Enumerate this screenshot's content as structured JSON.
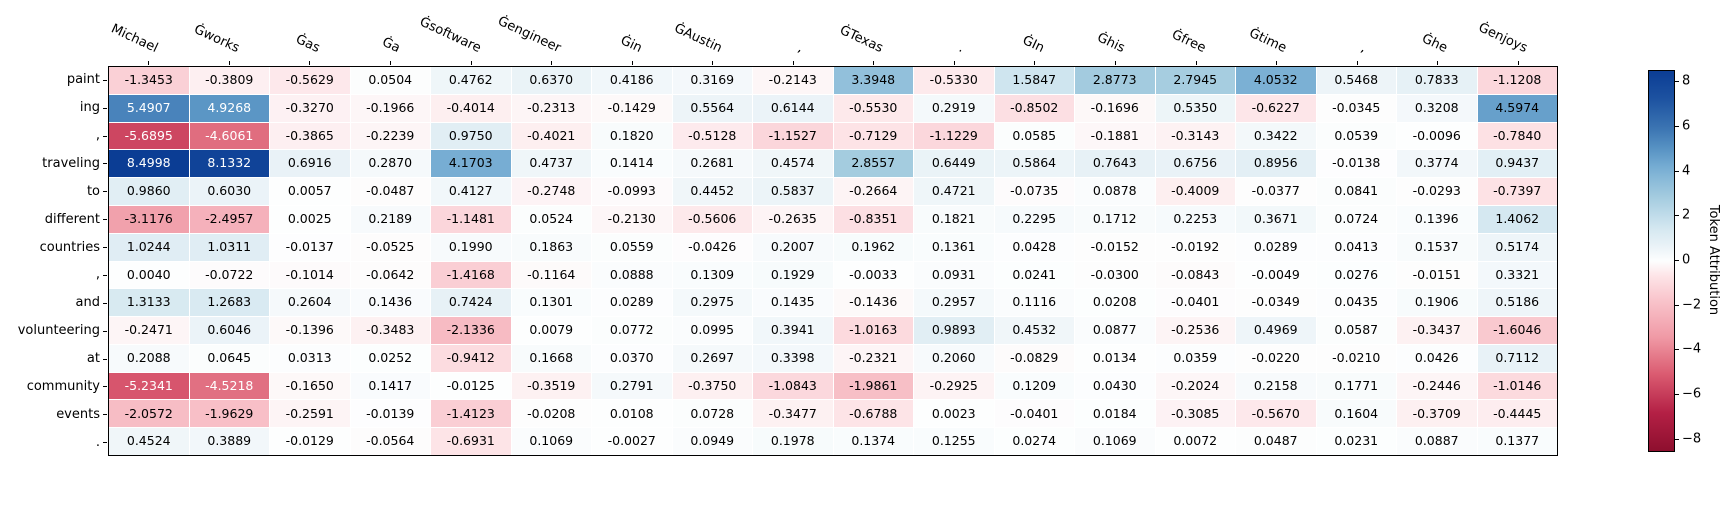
{
  "figure": {
    "background": "#ffffff",
    "text_color": "#000000",
    "cell_text_dark": "#000000",
    "cell_text_light": "#ffffff"
  },
  "chart_data": {
    "type": "heatmap",
    "title": "",
    "xlabel": "",
    "ylabel": "",
    "columns": [
      "Michael",
      "Ġworks",
      "Ġas",
      "Ġa",
      "Ġsoftware",
      "Ġengineer",
      "Ġin",
      "ĠAustin",
      ",",
      "ĠTexas",
      ".",
      "ĠIn",
      "Ġhis",
      "Ġfree",
      "Ġtime",
      ",",
      "Ġhe",
      "Ġenjoys"
    ],
    "rows": [
      "paint",
      "ing",
      ",",
      "traveling",
      "to",
      "different",
      "countries",
      ",",
      "and",
      "volunteering",
      "at",
      "community",
      "events",
      "."
    ],
    "values": [
      [
        -1.3453,
        -0.3809,
        -0.5629,
        0.0504,
        0.4762,
        0.637,
        0.4186,
        0.3169,
        -0.2143,
        3.3948,
        -0.533,
        1.5847,
        2.8773,
        2.7945,
        4.0532,
        0.5468,
        0.7833,
        -1.1208
      ],
      [
        5.4907,
        4.9268,
        -0.327,
        -0.1966,
        -0.4014,
        -0.2313,
        -0.1429,
        0.5564,
        0.6144,
        -0.553,
        0.2919,
        -0.8502,
        -0.1696,
        0.535,
        -0.6227,
        -0.0345,
        0.3208,
        4.5974
      ],
      [
        -5.6895,
        -4.6061,
        -0.3865,
        -0.2239,
        0.975,
        -0.4021,
        0.182,
        -0.5128,
        -1.1527,
        -0.7129,
        -1.1229,
        0.0585,
        -0.1881,
        -0.3143,
        0.3422,
        0.0539,
        -0.0096,
        -0.784
      ],
      [
        8.4998,
        8.1332,
        0.6916,
        0.287,
        4.1703,
        0.4737,
        0.1414,
        0.2681,
        0.4574,
        2.8557,
        0.6449,
        0.5864,
        0.7643,
        0.6756,
        0.8956,
        -0.0138,
        0.3774,
        0.9437
      ],
      [
        0.986,
        0.603,
        0.0057,
        -0.0487,
        0.4127,
        -0.2748,
        -0.0993,
        0.4452,
        0.5837,
        -0.2664,
        0.4721,
        -0.0735,
        0.0878,
        -0.4009,
        -0.0377,
        0.0841,
        -0.0293,
        -0.7397
      ],
      [
        -3.1176,
        -2.4957,
        0.0025,
        0.2189,
        -1.1481,
        0.0524,
        -0.213,
        -0.5606,
        -0.2635,
        -0.8351,
        0.1821,
        0.2295,
        0.1712,
        0.2253,
        0.3671,
        0.0724,
        0.1396,
        1.4062
      ],
      [
        1.0244,
        1.0311,
        -0.0137,
        -0.0525,
        0.199,
        0.1863,
        0.0559,
        -0.0426,
        0.2007,
        0.1962,
        0.1361,
        0.0428,
        -0.0152,
        -0.0192,
        0.0289,
        0.0413,
        0.1537,
        0.5174
      ],
      [
        0.004,
        -0.0722,
        -0.1014,
        -0.0642,
        -1.4168,
        -0.1164,
        0.0888,
        0.1309,
        0.1929,
        -0.0033,
        0.0931,
        0.0241,
        -0.03,
        -0.0843,
        -0.0049,
        0.0276,
        -0.0151,
        0.3321
      ],
      [
        1.3133,
        1.2683,
        0.2604,
        0.1436,
        0.7424,
        0.1301,
        0.0289,
        0.2975,
        0.1435,
        -0.1436,
        0.2957,
        0.1116,
        0.0208,
        -0.0401,
        -0.0349,
        0.0435,
        0.1906,
        0.5186
      ],
      [
        -0.2471,
        0.6046,
        -0.1396,
        -0.3483,
        -2.1336,
        0.0079,
        0.0772,
        0.0995,
        0.3941,
        -1.0163,
        0.9893,
        0.4532,
        0.0877,
        -0.2536,
        0.4969,
        0.0587,
        -0.3437,
        -1.6046
      ],
      [
        0.2088,
        0.0645,
        0.0313,
        0.0252,
        -0.9412,
        0.1668,
        0.037,
        0.2697,
        0.3398,
        -0.2321,
        0.206,
        -0.0829,
        0.0134,
        0.0359,
        -0.022,
        -0.021,
        0.0426,
        0.7112
      ],
      [
        -5.2341,
        -4.5218,
        -0.165,
        0.1417,
        -0.0125,
        -0.3519,
        0.2791,
        -0.375,
        -1.0843,
        -1.9861,
        -0.2925,
        0.1209,
        0.043,
        -0.2024,
        0.2158,
        0.1771,
        -0.2446,
        -1.0146
      ],
      [
        -2.0572,
        -1.9629,
        -0.2591,
        -0.0139,
        -1.4123,
        -0.0208,
        0.0108,
        0.0728,
        -0.3477,
        -0.6788,
        0.0023,
        -0.0401,
        0.0184,
        -0.3085,
        -0.567,
        0.1604,
        -0.3709,
        -0.4445
      ],
      [
        0.4524,
        0.3889,
        -0.0129,
        -0.0564,
        -0.6931,
        0.1069,
        -0.0027,
        0.0949,
        0.1978,
        0.1374,
        0.1255,
        0.0274,
        0.1069,
        0.0072,
        0.0487,
        0.0231,
        0.0887,
        0.1377
      ]
    ],
    "value_format": "%.4f",
    "grid": false,
    "legend_position": "right",
    "colorbar_label": "Token Attribution",
    "colorbar_ticks": [
      {
        "value": 8,
        "label": "8"
      },
      {
        "value": 6,
        "label": "6"
      },
      {
        "value": 4,
        "label": "4"
      },
      {
        "value": 2,
        "label": "2"
      },
      {
        "value": 0,
        "label": "0"
      },
      {
        "value": -2,
        "label": "−2"
      },
      {
        "value": -4,
        "label": "−4"
      },
      {
        "value": -6,
        "label": "−6"
      },
      {
        "value": -8,
        "label": "−8"
      }
    ],
    "vmin": -8.5,
    "vmax": 8.5,
    "colormap_stops": [
      {
        "t": 0.0,
        "color": "#8e0f2e"
      },
      {
        "t": 0.1,
        "color": "#b42045"
      },
      {
        "t": 0.2,
        "color": "#da5a70"
      },
      {
        "t": 0.25,
        "color": "#e57a8a"
      },
      {
        "t": 0.3,
        "color": "#f09aa6"
      },
      {
        "t": 0.4,
        "color": "#f9c6cd"
      },
      {
        "t": 0.46,
        "color": "#fde4e7"
      },
      {
        "t": 0.5,
        "color": "#fdfefe"
      },
      {
        "t": 0.54,
        "color": "#e9f2f7"
      },
      {
        "t": 0.58,
        "color": "#d7e9f1"
      },
      {
        "t": 0.62,
        "color": "#c0dcea"
      },
      {
        "t": 0.67,
        "color": "#a3cbdf"
      },
      {
        "t": 0.71,
        "color": "#8cbcd9"
      },
      {
        "t": 0.75,
        "color": "#74abd2"
      },
      {
        "t": 0.8,
        "color": "#5590c2"
      },
      {
        "t": 0.85,
        "color": "#3b74b2"
      },
      {
        "t": 0.93,
        "color": "#1c51a0"
      },
      {
        "t": 1.0,
        "color": "#0b3d94"
      }
    ],
    "luminance_threshold": 0.57
  }
}
